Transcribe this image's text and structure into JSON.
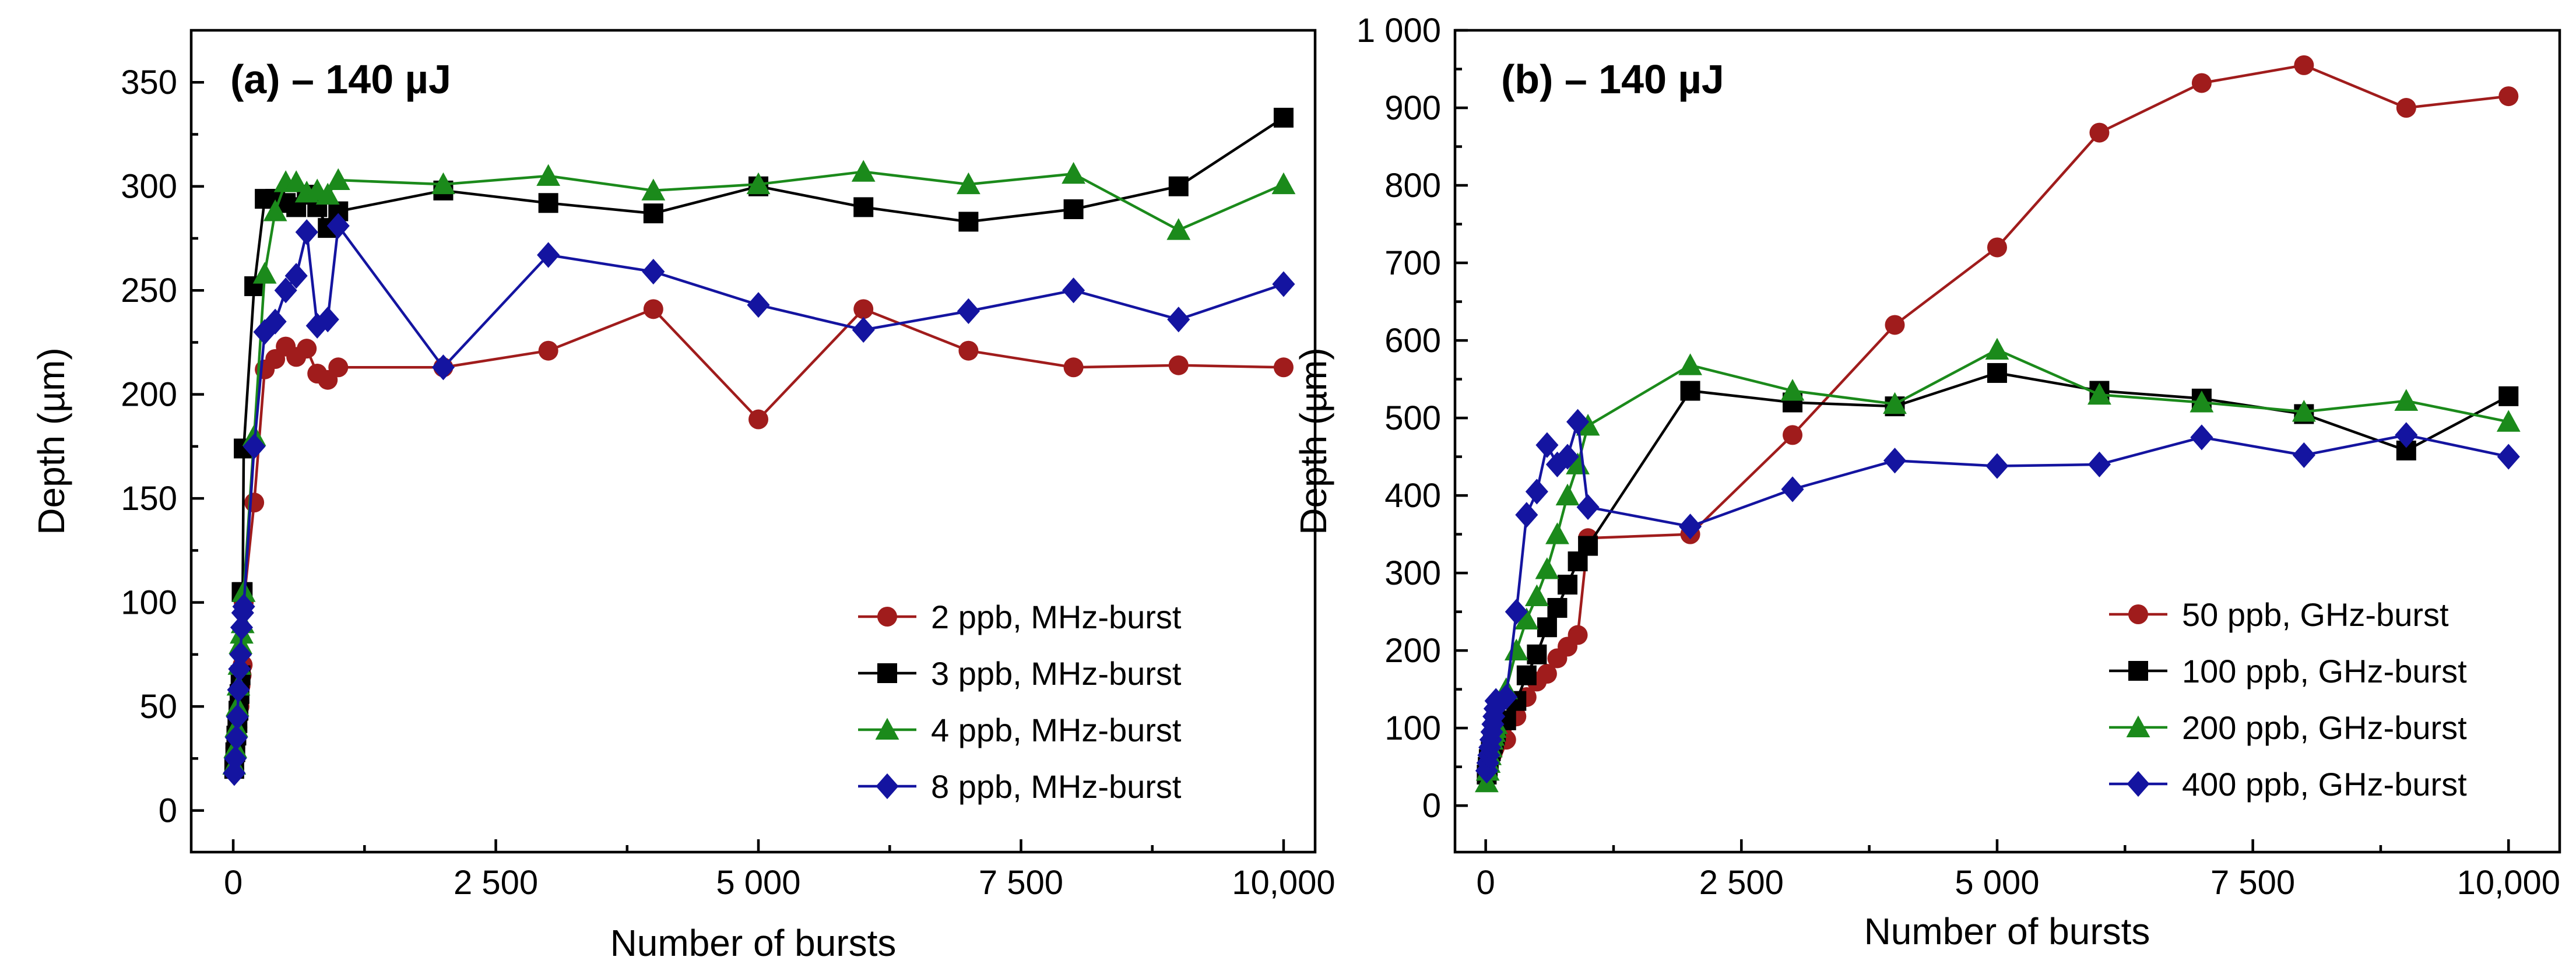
{
  "chart_data": [
    {
      "type": "line",
      "title": "(a) – 140 µJ",
      "xlabel": "Number of bursts",
      "ylabel": "Depth (µm)",
      "xlim": [
        -400,
        10300
      ],
      "ylim": [
        -20,
        375
      ],
      "xticks": [
        0,
        2500,
        5000,
        7500,
        10000
      ],
      "xtick_labels": [
        "0",
        "2 500",
        "5 000",
        "7 500",
        "10,000"
      ],
      "yticks": [
        0,
        50,
        100,
        150,
        200,
        250,
        300,
        350
      ],
      "ytick_labels": [
        "0",
        "50",
        "100",
        "150",
        "200",
        "250",
        "300",
        "350"
      ],
      "legend_position": "bottom-right",
      "series": [
        {
          "name": "2 ppb, MHz-burst",
          "color": "#a01c1c",
          "marker": "circle",
          "x": [
            10,
            20,
            30,
            40,
            50,
            60,
            70,
            80,
            90,
            100,
            200,
            300,
            400,
            500,
            600,
            700,
            800,
            900,
            1000,
            2000,
            3000,
            4000,
            5000,
            6000,
            7000,
            8000,
            9000,
            10000
          ],
          "y": [
            20,
            30,
            35,
            40,
            45,
            50,
            60,
            65,
            70,
            100,
            148,
            212,
            217,
            223,
            218,
            222,
            210,
            207,
            213,
            213,
            221,
            241,
            188,
            241,
            221,
            213,
            214,
            213
          ]
        },
        {
          "name": "3 ppb, MHz-burst",
          "color": "#000000",
          "marker": "square",
          "x": [
            10,
            20,
            30,
            40,
            50,
            60,
            70,
            80,
            90,
            100,
            200,
            300,
            400,
            500,
            600,
            700,
            800,
            900,
            1000,
            2000,
            3000,
            4000,
            5000,
            6000,
            7000,
            8000,
            9000,
            10000
          ],
          "y": [
            20,
            28,
            36,
            42,
            48,
            56,
            65,
            105,
            105,
            174,
            252,
            294,
            294,
            292,
            290,
            296,
            290,
            280,
            288,
            298,
            292,
            287,
            300,
            290,
            283,
            289,
            300,
            333
          ]
        },
        {
          "name": "4 ppb, MHz-burst",
          "color": "#1b8a1b",
          "marker": "triangle",
          "x": [
            10,
            20,
            30,
            40,
            50,
            60,
            70,
            80,
            90,
            100,
            200,
            300,
            400,
            500,
            600,
            700,
            800,
            900,
            1000,
            2000,
            3000,
            4000,
            5000,
            6000,
            7000,
            8000,
            9000,
            10000
          ],
          "y": [
            22,
            30,
            40,
            50,
            60,
            70,
            80,
            85,
            90,
            105,
            180,
            258,
            288,
            302,
            302,
            297,
            298,
            296,
            303,
            301,
            305,
            298,
            301,
            307,
            301,
            306,
            279,
            301
          ]
        },
        {
          "name": "8 ppb, MHz-burst",
          "color": "#1414a0",
          "marker": "diamond",
          "x": [
            10,
            20,
            30,
            40,
            50,
            60,
            70,
            80,
            90,
            100,
            200,
            300,
            400,
            500,
            600,
            700,
            800,
            900,
            1000,
            2000,
            3000,
            4000,
            5000,
            6000,
            7000,
            8000,
            9000,
            10000
          ],
          "y": [
            18,
            25,
            35,
            45,
            58,
            68,
            75,
            88,
            95,
            98,
            175,
            230,
            235,
            250,
            257,
            278,
            233,
            236,
            281,
            213,
            267,
            259,
            243,
            231,
            240,
            250,
            236,
            253
          ]
        }
      ]
    },
    {
      "type": "line",
      "title": "(b) – 140 µJ",
      "xlabel": "Number of bursts",
      "ylabel": "Depth (µm)",
      "xlim": [
        -300,
        10500
      ],
      "ylim": [
        -60,
        1000
      ],
      "xticks": [
        0,
        2500,
        5000,
        7500,
        10000
      ],
      "xtick_labels": [
        "0",
        "2 500",
        "5 000",
        "7 500",
        "10,000"
      ],
      "yticks": [
        0,
        100,
        200,
        300,
        400,
        500,
        600,
        700,
        800,
        900,
        1000
      ],
      "ytick_labels": [
        "0",
        "100",
        "200",
        "300",
        "400",
        "500",
        "600",
        "700",
        "800",
        "900",
        "1 000"
      ],
      "legend_position": "bottom-right",
      "series": [
        {
          "name": "50 ppb, GHz-burst",
          "color": "#a01c1c",
          "marker": "circle",
          "x": [
            10,
            20,
            30,
            40,
            50,
            60,
            70,
            80,
            90,
            100,
            200,
            300,
            400,
            500,
            600,
            700,
            800,
            900,
            1000,
            2000,
            3000,
            4000,
            5000,
            6000,
            7000,
            8000,
            9000,
            10000
          ],
          "y": [
            35,
            45,
            55,
            60,
            62,
            65,
            68,
            72,
            75,
            80,
            85,
            115,
            140,
            160,
            170,
            190,
            205,
            220,
            345,
            350,
            478,
            620,
            720,
            868,
            932,
            955,
            900,
            915
          ]
        },
        {
          "name": "100 ppb, GHz-burst",
          "color": "#000000",
          "marker": "square",
          "x": [
            10,
            20,
            30,
            40,
            50,
            60,
            70,
            80,
            90,
            100,
            200,
            300,
            400,
            500,
            600,
            700,
            800,
            900,
            1000,
            2000,
            3000,
            4000,
            5000,
            6000,
            7000,
            8000,
            9000,
            10000
          ],
          "y": [
            40,
            50,
            60,
            65,
            70,
            75,
            80,
            85,
            90,
            95,
            110,
            135,
            168,
            195,
            230,
            255,
            285,
            315,
            335,
            535,
            520,
            515,
            558,
            535,
            525,
            505,
            458,
            528
          ]
        },
        {
          "name": "200 ppb, GHz-burst",
          "color": "#1b8a1b",
          "marker": "triangle",
          "x": [
            10,
            20,
            30,
            40,
            50,
            60,
            70,
            80,
            90,
            100,
            200,
            300,
            400,
            500,
            600,
            700,
            800,
            900,
            1000,
            2000,
            3000,
            4000,
            5000,
            6000,
            7000,
            8000,
            9000,
            10000
          ],
          "y": [
            30,
            45,
            55,
            65,
            75,
            85,
            90,
            95,
            100,
            105,
            150,
            200,
            240,
            270,
            305,
            350,
            400,
            440,
            490,
            568,
            535,
            518,
            588,
            530,
            520,
            508,
            522,
            495
          ]
        },
        {
          "name": "400 ppb, GHz-burst",
          "color": "#1414a0",
          "marker": "diamond",
          "x": [
            10,
            20,
            30,
            40,
            50,
            60,
            70,
            80,
            90,
            100,
            200,
            300,
            400,
            500,
            600,
            700,
            800,
            900,
            1000,
            2000,
            3000,
            4000,
            5000,
            6000,
            7000,
            8000,
            9000,
            10000
          ],
          "y": [
            45,
            55,
            65,
            75,
            85,
            95,
            105,
            115,
            125,
            135,
            140,
            250,
            375,
            405,
            465,
            440,
            450,
            495,
            385,
            360,
            408,
            445,
            438,
            440,
            475,
            452,
            478,
            450
          ]
        }
      ]
    }
  ]
}
